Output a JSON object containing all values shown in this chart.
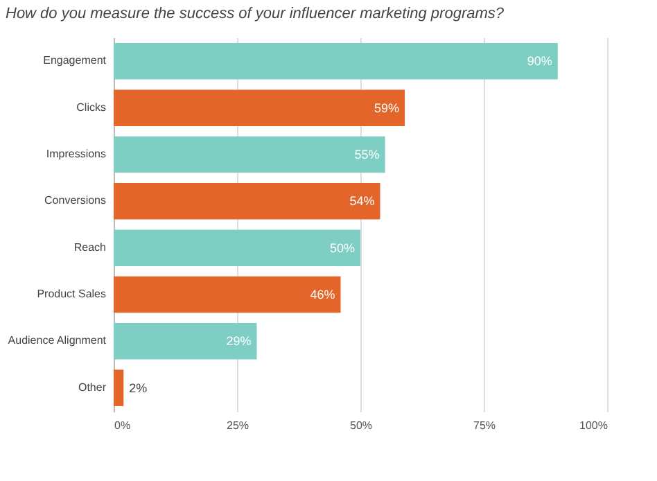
{
  "chart_data": {
    "type": "bar",
    "orientation": "horizontal",
    "title": "How do you measure the success of your influencer marketing programs?",
    "categories": [
      "Engagement",
      "Clicks",
      "Impressions",
      "Conversions",
      "Reach",
      "Product Sales",
      "Audience Alignment",
      "Other"
    ],
    "values": [
      90,
      59,
      55,
      54,
      50,
      46,
      29,
      2
    ],
    "value_labels": [
      "90%",
      "59%",
      "55%",
      "54%",
      "50%",
      "46%",
      "29%",
      "2%"
    ],
    "colors": [
      "#7ecec4",
      "#e4652a",
      "#7ecec4",
      "#e4652a",
      "#7ecec4",
      "#e4652a",
      "#7ecec4",
      "#e4652a"
    ],
    "xlim": [
      0,
      100
    ],
    "xticks": [
      {
        "value": 0,
        "label": "0%"
      },
      {
        "value": 25,
        "label": "25%"
      },
      {
        "value": 50,
        "label": "50%"
      },
      {
        "value": 75,
        "label": "75%"
      },
      {
        "value": 100,
        "label": "100%"
      }
    ],
    "grid": "x"
  }
}
